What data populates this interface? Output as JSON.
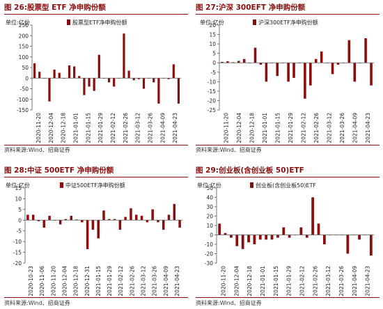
{
  "colors": {
    "bar": "#8b0e0e",
    "title": "#8b0e0e",
    "axis": "#555555"
  },
  "charts": [
    {
      "fig_title": "图 26:股票型 ETF 净申购份额",
      "unit": "单位:亿份",
      "source": "资料来源:Wind、招商证券",
      "chart_data": {
        "type": "bar",
        "title": "",
        "legend": "股票型ETF净申购份额",
        "legend_position": "top-left",
        "ylim": [
          -150,
          250
        ],
        "yticks": [
          250,
          200,
          150,
          100,
          50,
          0,
          -50,
          -100,
          -150
        ],
        "xticks": [
          "2020-11-20",
          "2020-12-04",
          "2020-12-18",
          "2021-01-01",
          "2021-01-15",
          "2021-01-29",
          "2021-02-12",
          "2021-02-26",
          "2021-03-12",
          "2021-03-26",
          "2021-04-09",
          "2021-04-23"
        ],
        "values": [
          70,
          30,
          0,
          -110,
          40,
          25,
          0,
          60,
          55,
          10,
          -80,
          -40,
          -60,
          110,
          0,
          -20,
          -40,
          0,
          210,
          35,
          -10,
          -5,
          -50,
          0,
          -20,
          -120,
          0,
          -5,
          65,
          -120
        ]
      }
    },
    {
      "fig_title": "图 27:沪深 300EFT 净申购份额",
      "unit": "单位:亿份",
      "source": "资料来源:Wind、招商证券",
      "chart_data": {
        "type": "bar",
        "title": "",
        "legend": "沪深300ETF净申购份额",
        "legend_position": "top-left",
        "ylim": [
          -25,
          20
        ],
        "yticks": [
          20,
          15,
          10,
          5,
          0,
          -5,
          -10,
          -15,
          -20,
          -25
        ],
        "xticks": [
          "2020-11-20",
          "2020-12-04",
          "2020-12-18",
          "2021-01-01",
          "2021-01-15",
          "2021-01-29",
          "2021-02-12",
          "2021-02-26",
          "2021-03-12",
          "2021-03-26",
          "2021-04-09",
          "2021-04-23"
        ],
        "values": [
          0.5,
          0.8,
          0.3,
          1.0,
          2.0,
          0,
          8,
          -1,
          -10,
          0,
          -7,
          0,
          -10,
          -8,
          0,
          -19,
          -12,
          2,
          6,
          0,
          -6,
          -1,
          0,
          12,
          -10,
          0,
          13,
          -12
        ]
      }
    },
    {
      "fig_title": "图 28:中证 500ETF 净申购份额",
      "unit": "单位:亿份",
      "source": "资料来源:Wind、招商证券",
      "chart_data": {
        "type": "bar",
        "title": "",
        "legend": "中证500ETF净申购份额",
        "legend_position": "top-left",
        "ylim": [
          -20,
          15
        ],
        "yticks": [
          15,
          10,
          5,
          0,
          -5,
          -10,
          -15,
          -20
        ],
        "xticks": [
          "2020-10-23",
          "2020-11-06",
          "2020-11-20",
          "2020-12-04",
          "2020-12-18",
          "2020-12-31",
          "2021-01-15",
          "2021-01-29",
          "2021-02-12",
          "2021-02-26",
          "2021-03-12",
          "2021-03-26",
          "2021-04-09",
          "2021-04-23"
        ],
        "values": [
          2.5,
          2.5,
          -0.5,
          -3.5,
          2.0,
          0,
          -2.0,
          0.5,
          2.0,
          0.3,
          -1.0,
          -13.5,
          -4.5,
          -8.5,
          4.5,
          0.5,
          0.5,
          -4.5,
          1.5,
          5.5,
          2.5,
          2.0,
          -1.0,
          5.0,
          -1.0,
          -4.5,
          2.5,
          7.5,
          -3.5
        ]
      }
    },
    {
      "fig_title": "图 29:创业板(含创业板 50)ETF",
      "unit": "单位:亿份",
      "source": "资料来源:Wind、招商证券",
      "chart_data": {
        "type": "bar",
        "title": "",
        "legend": "创业板(含创业板50)ETF",
        "legend_position": "top-left",
        "ylim": [
          -30,
          50
        ],
        "yticks": [
          50,
          40,
          30,
          20,
          10,
          0,
          -10,
          -20,
          -30
        ],
        "xticks": [
          "2020-11-20",
          "2020-12-04",
          "2020-12-18",
          "2021-01-01",
          "2021-01-15",
          "2021-01-29",
          "2021-02-12",
          "2021-02-26",
          "2021-03-12",
          "2021-03-26",
          "2021-04-09",
          "2021-04-23"
        ],
        "values": [
          12,
          2,
          -3,
          -12,
          -15,
          -8,
          -10,
          -5,
          -5,
          -5,
          -3,
          8,
          -3,
          0,
          8,
          -3,
          40,
          12,
          -10,
          0,
          0,
          0,
          -20,
          0,
          -5,
          0,
          -22
        ]
      }
    }
  ]
}
